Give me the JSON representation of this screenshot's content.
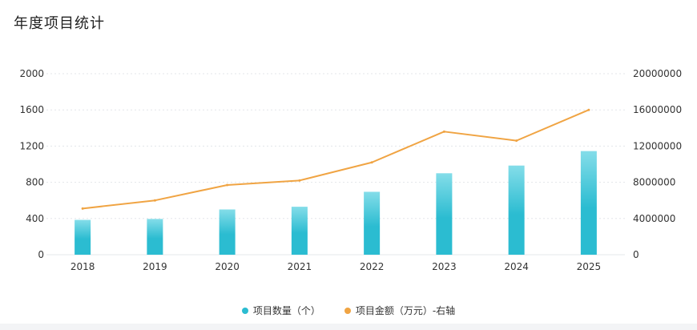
{
  "header": {
    "title": "年度项目统计"
  },
  "colors": {
    "bar_top": "#84dde9",
    "bar_bottom": "#2bbcd1",
    "line": "#f0a443",
    "grid": "#e3e6ea"
  },
  "chart_data": {
    "type": "bar",
    "categories": [
      "2018",
      "2019",
      "2020",
      "2021",
      "2022",
      "2023",
      "2024",
      "2025"
    ],
    "series": [
      {
        "name": "项目数量（个）",
        "type": "bar",
        "axis": "left",
        "values": [
          385,
          395,
          500,
          530,
          695,
          900,
          985,
          1145
        ]
      },
      {
        "name": "项目金额（万元）-右轴",
        "type": "line",
        "axis": "right",
        "values": [
          5100000,
          6000000,
          7700000,
          8200000,
          10200000,
          13600000,
          12600000,
          16000000
        ]
      }
    ],
    "y_left": {
      "min": 0,
      "max": 2000,
      "ticks": [
        "0",
        "400",
        "800",
        "1200",
        "1600",
        "2000"
      ]
    },
    "y_right": {
      "min": 0,
      "max": 20000000,
      "ticks": [
        "0",
        "4000000",
        "8000000",
        "12000000",
        "16000000",
        "20000000"
      ]
    },
    "grid": true,
    "legend_position": "bottom-center"
  }
}
